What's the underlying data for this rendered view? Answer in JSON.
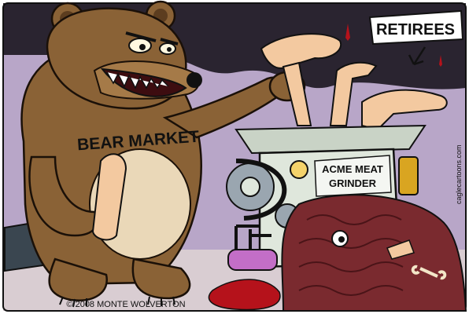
{
  "cartoon": {
    "bear_shirt_text": "BEAR MARKET",
    "grinder_label_line1": "ACME MEAT",
    "grinder_label_line2": "GRINDER",
    "sign_text": "RETIREES",
    "credit_text": "© 2008 MONTE WOLVERTON",
    "side_credit_text": "caglecartoons.com"
  },
  "colors": {
    "sky": "#b8a6c8",
    "night": "#2a2430",
    "bear_fur": "#8a6236",
    "bear_dark": "#5c3d1f",
    "belly": "#ead8b8",
    "skin": "#f3c9a0",
    "grinder": "#dfe7dc",
    "blood": "#b5121b",
    "meat": "#7a2a2f",
    "gold": "#d9a521",
    "pipe": "#c36ec7"
  }
}
